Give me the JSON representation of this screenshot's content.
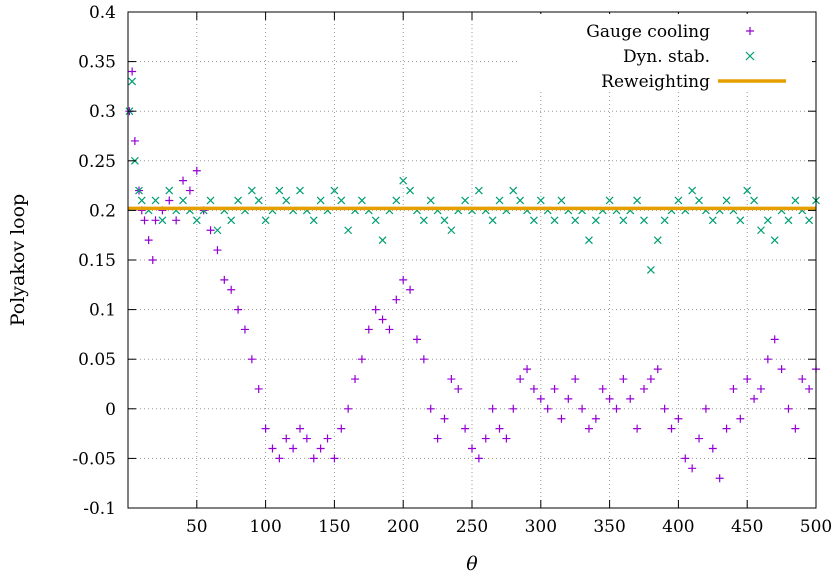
{
  "chart_data": {
    "type": "scatter",
    "xlabel": "θ",
    "ylabel": "Polyakov loop",
    "xlim": [
      0,
      500
    ],
    "ylim": [
      -0.1,
      0.4
    ],
    "xticks": [
      50,
      100,
      150,
      200,
      250,
      300,
      350,
      400,
      450,
      500
    ],
    "xtick_labels": [
      "50",
      "100",
      "150",
      "200",
      "250",
      "300",
      "350",
      "400",
      "450",
      "500"
    ],
    "yticks": [
      -0.1,
      -0.05,
      0,
      0.05,
      0.1,
      0.15,
      0.2,
      0.25,
      0.3,
      0.35,
      0.4
    ],
    "ytick_labels": [
      "-0.1",
      "-0.05",
      "0",
      "0.05",
      "0.1",
      "0.15",
      "0.2",
      "0.25",
      "0.3",
      "0.35",
      "0.4"
    ],
    "grid": true,
    "legend_position": "top-right",
    "series": [
      {
        "name": "Gauge cooling",
        "marker": "plus",
        "color": "#9400d3",
        "x": [
          1,
          3,
          5,
          8,
          10,
          12,
          15,
          18,
          20,
          25,
          30,
          35,
          40,
          45,
          50,
          55,
          60,
          65,
          70,
          75,
          80,
          85,
          90,
          95,
          100,
          105,
          110,
          115,
          120,
          125,
          130,
          135,
          140,
          145,
          150,
          155,
          160,
          165,
          170,
          175,
          180,
          185,
          190,
          195,
          200,
          205,
          210,
          215,
          220,
          225,
          230,
          235,
          240,
          245,
          250,
          255,
          260,
          265,
          270,
          275,
          280,
          285,
          290,
          295,
          300,
          305,
          310,
          315,
          320,
          325,
          330,
          335,
          340,
          345,
          350,
          355,
          360,
          365,
          370,
          375,
          380,
          385,
          390,
          395,
          400,
          405,
          410,
          415,
          420,
          425,
          430,
          435,
          440,
          445,
          450,
          455,
          460,
          465,
          470,
          475,
          480,
          485,
          490,
          495,
          500
        ],
        "y": [
          0.3,
          0.34,
          0.27,
          0.22,
          0.2,
          0.19,
          0.17,
          0.15,
          0.19,
          0.2,
          0.21,
          0.19,
          0.23,
          0.22,
          0.24,
          0.2,
          0.18,
          0.16,
          0.13,
          0.12,
          0.1,
          0.08,
          0.05,
          0.02,
          -0.02,
          -0.04,
          -0.05,
          -0.03,
          -0.04,
          -0.02,
          -0.03,
          -0.05,
          -0.04,
          -0.03,
          -0.05,
          -0.02,
          0.0,
          0.03,
          0.05,
          0.08,
          0.1,
          0.09,
          0.08,
          0.11,
          0.13,
          0.12,
          0.07,
          0.05,
          0.0,
          -0.03,
          -0.01,
          0.03,
          0.02,
          -0.02,
          -0.04,
          -0.05,
          -0.03,
          0.0,
          -0.02,
          -0.03,
          0.0,
          0.03,
          0.04,
          0.02,
          0.01,
          0.0,
          0.02,
          -0.01,
          0.01,
          0.03,
          0.0,
          -0.02,
          -0.01,
          0.02,
          0.01,
          0.0,
          0.03,
          0.01,
          -0.02,
          0.02,
          0.03,
          0.04,
          0.0,
          -0.02,
          -0.01,
          -0.05,
          -0.06,
          -0.03,
          0.0,
          -0.04,
          -0.07,
          -0.02,
          0.02,
          -0.01,
          0.03,
          0.01,
          0.02,
          0.05,
          0.07,
          0.04,
          0.0,
          -0.02,
          0.03,
          0.02,
          0.04
        ]
      },
      {
        "name": "Dyn. stab.",
        "marker": "cross",
        "color": "#009e73",
        "x": [
          1,
          3,
          5,
          8,
          10,
          15,
          20,
          25,
          30,
          35,
          40,
          45,
          50,
          55,
          60,
          65,
          70,
          75,
          80,
          85,
          90,
          95,
          100,
          105,
          110,
          115,
          120,
          125,
          130,
          135,
          140,
          145,
          150,
          155,
          160,
          165,
          170,
          175,
          180,
          185,
          190,
          195,
          200,
          205,
          210,
          215,
          220,
          225,
          230,
          235,
          240,
          245,
          250,
          255,
          260,
          265,
          270,
          275,
          280,
          285,
          290,
          295,
          300,
          305,
          310,
          315,
          320,
          325,
          330,
          335,
          340,
          345,
          350,
          355,
          360,
          365,
          370,
          375,
          380,
          385,
          390,
          395,
          400,
          405,
          410,
          415,
          420,
          425,
          430,
          435,
          440,
          445,
          450,
          455,
          460,
          465,
          470,
          475,
          480,
          485,
          490,
          495,
          500
        ],
        "y": [
          0.3,
          0.33,
          0.25,
          0.22,
          0.21,
          0.2,
          0.21,
          0.19,
          0.22,
          0.2,
          0.21,
          0.2,
          0.19,
          0.2,
          0.21,
          0.18,
          0.2,
          0.19,
          0.21,
          0.2,
          0.22,
          0.21,
          0.19,
          0.2,
          0.22,
          0.21,
          0.2,
          0.22,
          0.2,
          0.19,
          0.21,
          0.2,
          0.22,
          0.21,
          0.18,
          0.2,
          0.21,
          0.2,
          0.19,
          0.17,
          0.2,
          0.21,
          0.23,
          0.22,
          0.2,
          0.19,
          0.21,
          0.2,
          0.19,
          0.18,
          0.2,
          0.21,
          0.2,
          0.22,
          0.2,
          0.19,
          0.21,
          0.2,
          0.22,
          0.21,
          0.2,
          0.19,
          0.21,
          0.2,
          0.19,
          0.21,
          0.2,
          0.19,
          0.2,
          0.17,
          0.19,
          0.2,
          0.21,
          0.2,
          0.19,
          0.2,
          0.21,
          0.19,
          0.14,
          0.17,
          0.19,
          0.2,
          0.21,
          0.2,
          0.22,
          0.21,
          0.2,
          0.19,
          0.2,
          0.21,
          0.2,
          0.19,
          0.22,
          0.21,
          0.18,
          0.19,
          0.17,
          0.2,
          0.19,
          0.21,
          0.2,
          0.19,
          0.21
        ]
      },
      {
        "name": "Reweighting",
        "marker": "line",
        "color": "#e69f00",
        "x": [
          0,
          500
        ],
        "y": [
          0.202,
          0.202
        ]
      }
    ]
  }
}
